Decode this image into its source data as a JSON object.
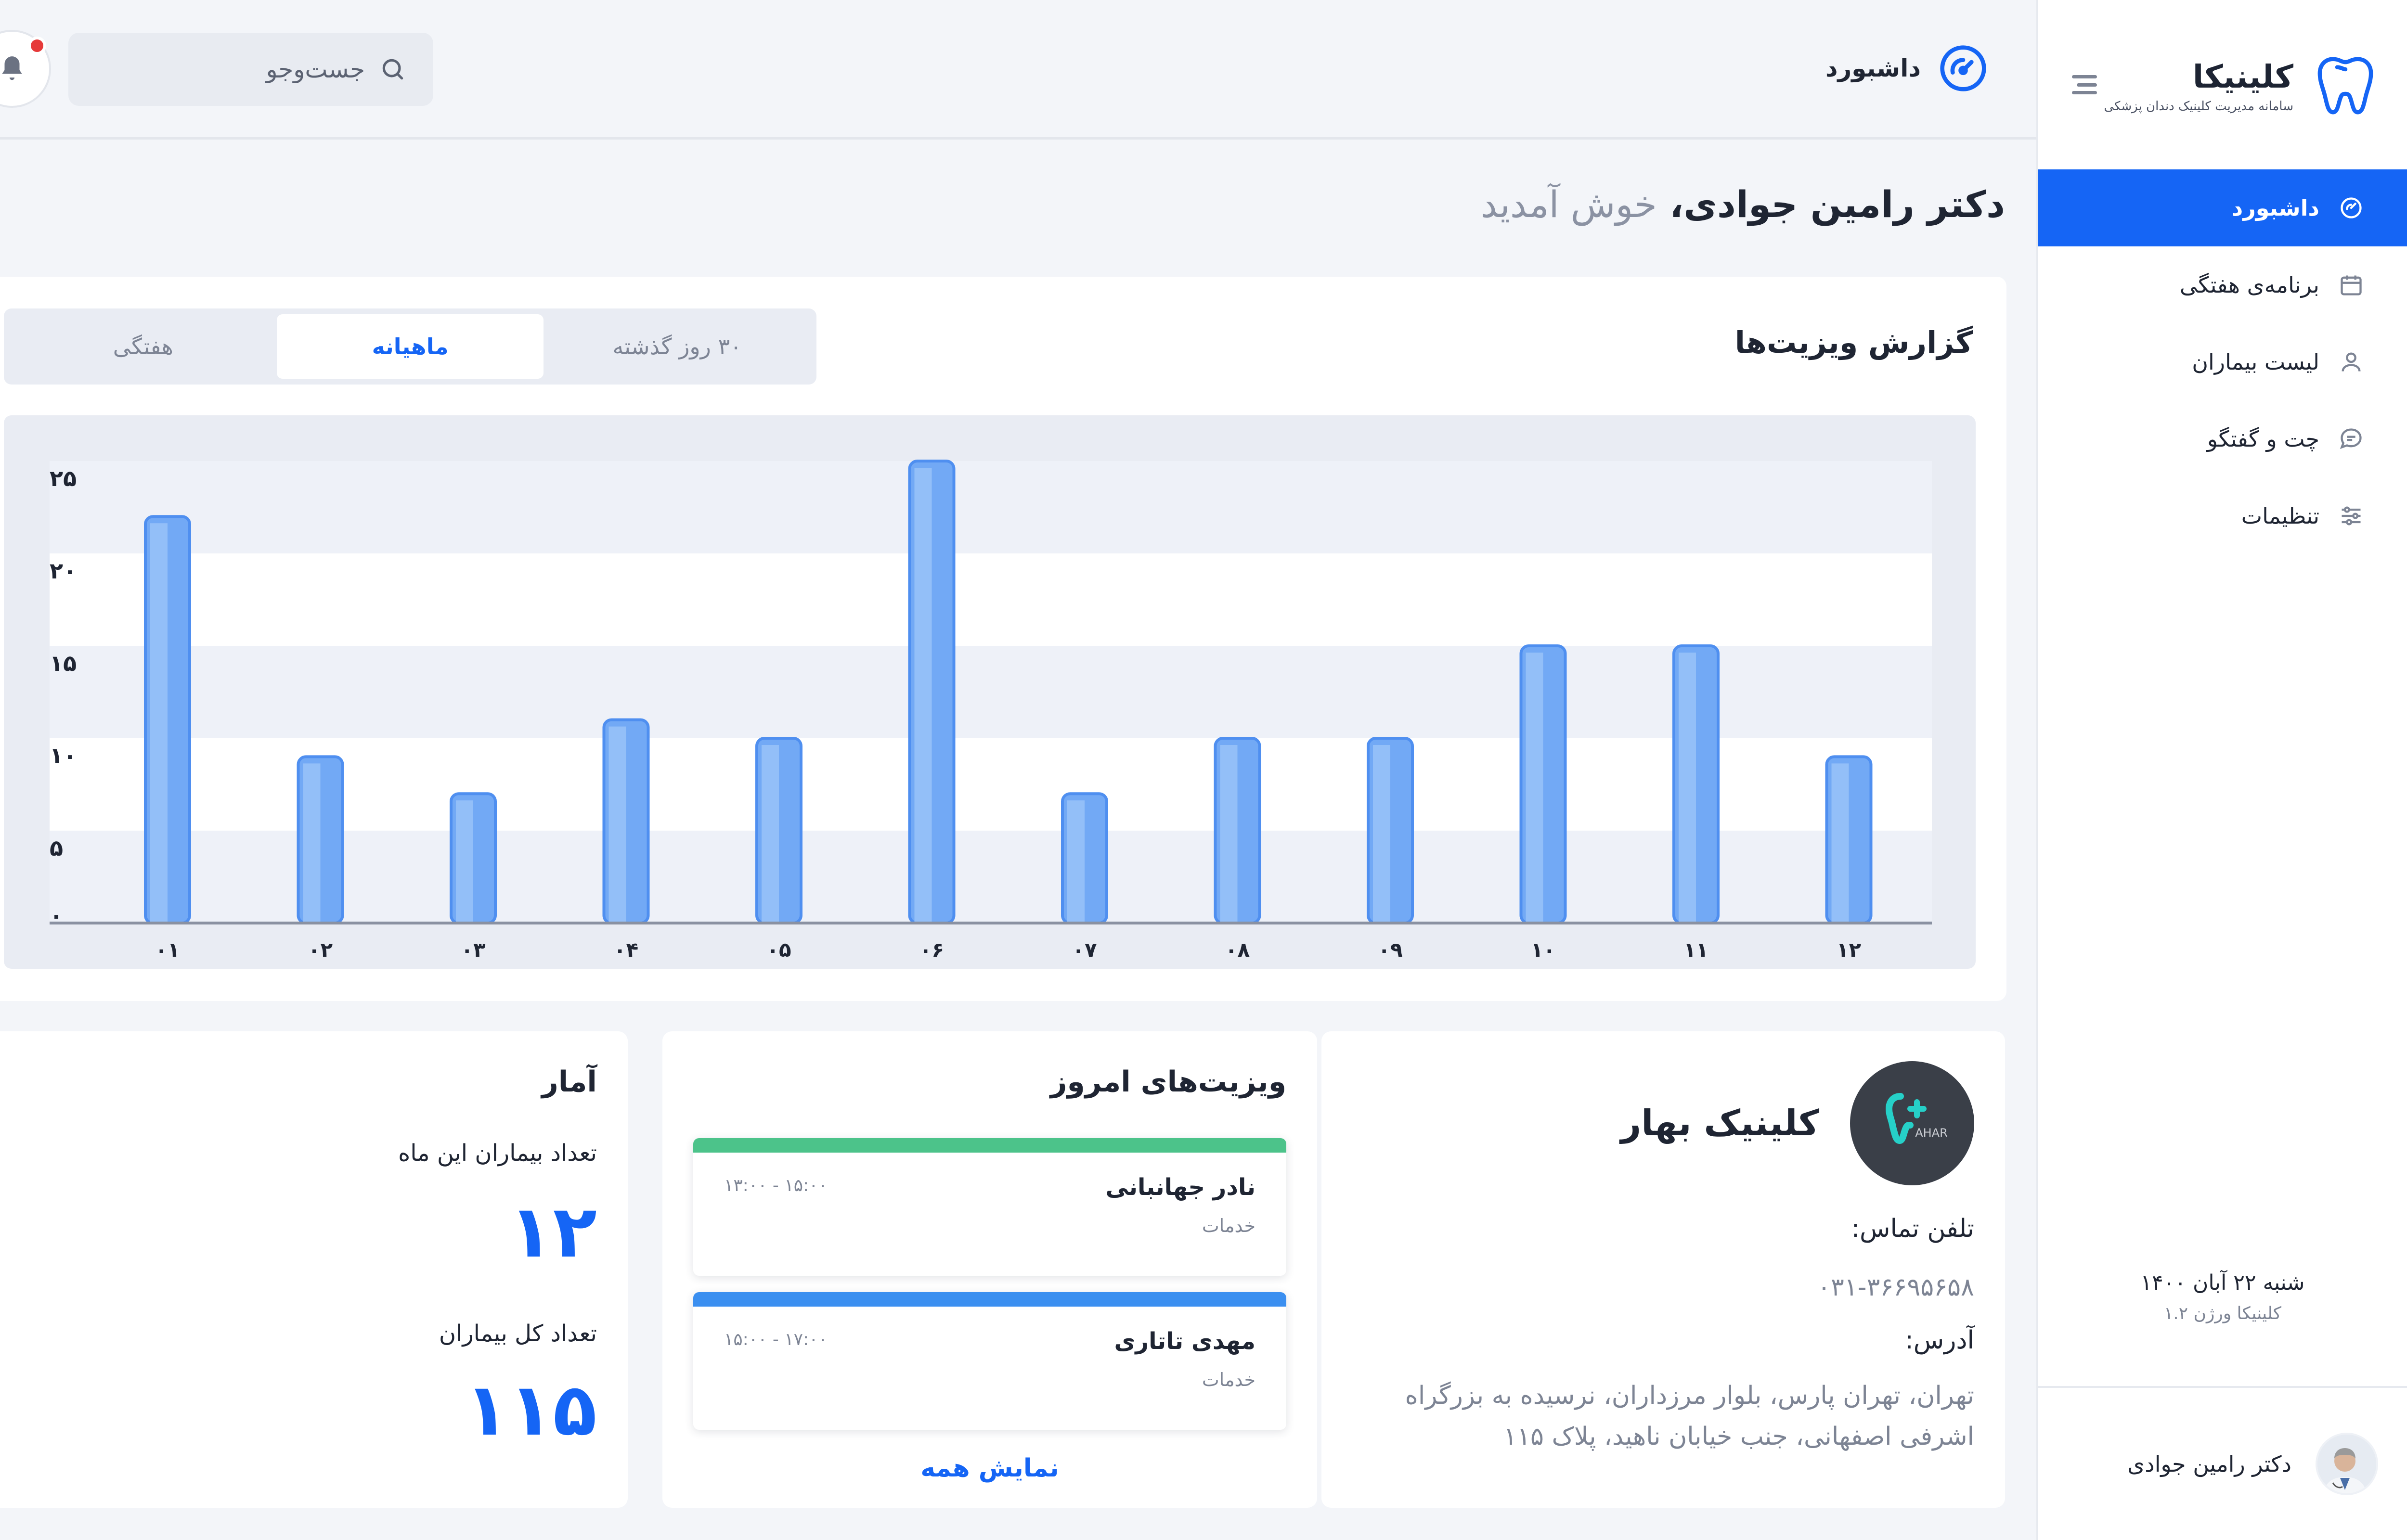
{
  "app": {
    "name": "کلینیکا",
    "subtitle": "سامانه مدیریت کلینیک دندان پزشکی"
  },
  "sidebar": {
    "items": [
      {
        "label": "داشبورد",
        "icon": "dashboard-icon",
        "active": true
      },
      {
        "label": "برنامه‌ی هفتگی",
        "icon": "calendar-icon"
      },
      {
        "label": "لیست بیماران",
        "icon": "user-icon"
      },
      {
        "label": "چت و گفتگو",
        "icon": "chat-icon"
      },
      {
        "label": "تنظیمات",
        "icon": "sliders-icon"
      }
    ],
    "date": "شنبه ۲۲ آبان ۱۴۰۰",
    "version": "کلینیکا ورژن ۱.۲",
    "user_name": "دکتر رامین جوادی"
  },
  "topbar": {
    "title": "داشبورد",
    "search_placeholder": "جست‌وجو",
    "has_notification": true
  },
  "welcome": {
    "name": "دکتر رامین جوادی،",
    "greeting": "خوش آمدید"
  },
  "report": {
    "title": "گزارش ویزیت‌ها",
    "tabs": [
      "هفتگی",
      "ماهیانه",
      "۳۰ روز گذشته"
    ],
    "active_tab": "ماهیانه"
  },
  "chart_data": {
    "type": "bar",
    "categories": [
      "۰۱",
      "۰۲",
      "۰۳",
      "۰۴",
      "۰۵",
      "۰۶",
      "۰۷",
      "۰۸",
      "۰۹",
      "۱۰",
      "۱۱",
      "۱۲"
    ],
    "values": [
      22,
      9,
      7,
      11,
      10,
      25,
      7,
      10,
      10,
      15,
      15,
      9
    ],
    "y_ticks": [
      "۰",
      "۵",
      "۱۰",
      "۱۵",
      "۲۰",
      "۲۵"
    ],
    "ylim": [
      0,
      25
    ],
    "bar_color": "#72a9f5",
    "title": "",
    "xlabel": "",
    "ylabel": ""
  },
  "clinic": {
    "name": "کلینیک بهار",
    "phone_label": "تلفن تماس:",
    "phone": "۰۳۱-۳۶۶۹۵۶۵۸",
    "address_label": "آدرس:",
    "address_line1": "تهران، تهران پارس، بلوار مرزداران، نرسیده به بزرگراه",
    "address_line2": "اشرفی اصفهانی، جنب خیابان ناهید، پلاک ۱۱۵",
    "logo_text": "AHAR"
  },
  "visits": {
    "title": "ویزیت‌های امروز",
    "items": [
      {
        "name": "نادر جهانبانی",
        "service": "خدمات",
        "time": "۱۵:۰۰ - ۱۳:۰۰",
        "color": "#4cc38a"
      },
      {
        "name": "مهدی تاتاری",
        "service": "خدمات",
        "time": "۱۷:۰۰ - ۱۵:۰۰",
        "color": "#3b8ff0"
      }
    ],
    "show_all": "نمایش همه"
  },
  "stats": {
    "title": "آمار",
    "month_label": "تعداد بیماران این ماه",
    "month_value": "۱۲",
    "total_label": "تعداد کل بیماران",
    "total_value": "۱۱۵"
  },
  "colors": {
    "primary": "#1565f5",
    "notification": "#e63a3a"
  }
}
